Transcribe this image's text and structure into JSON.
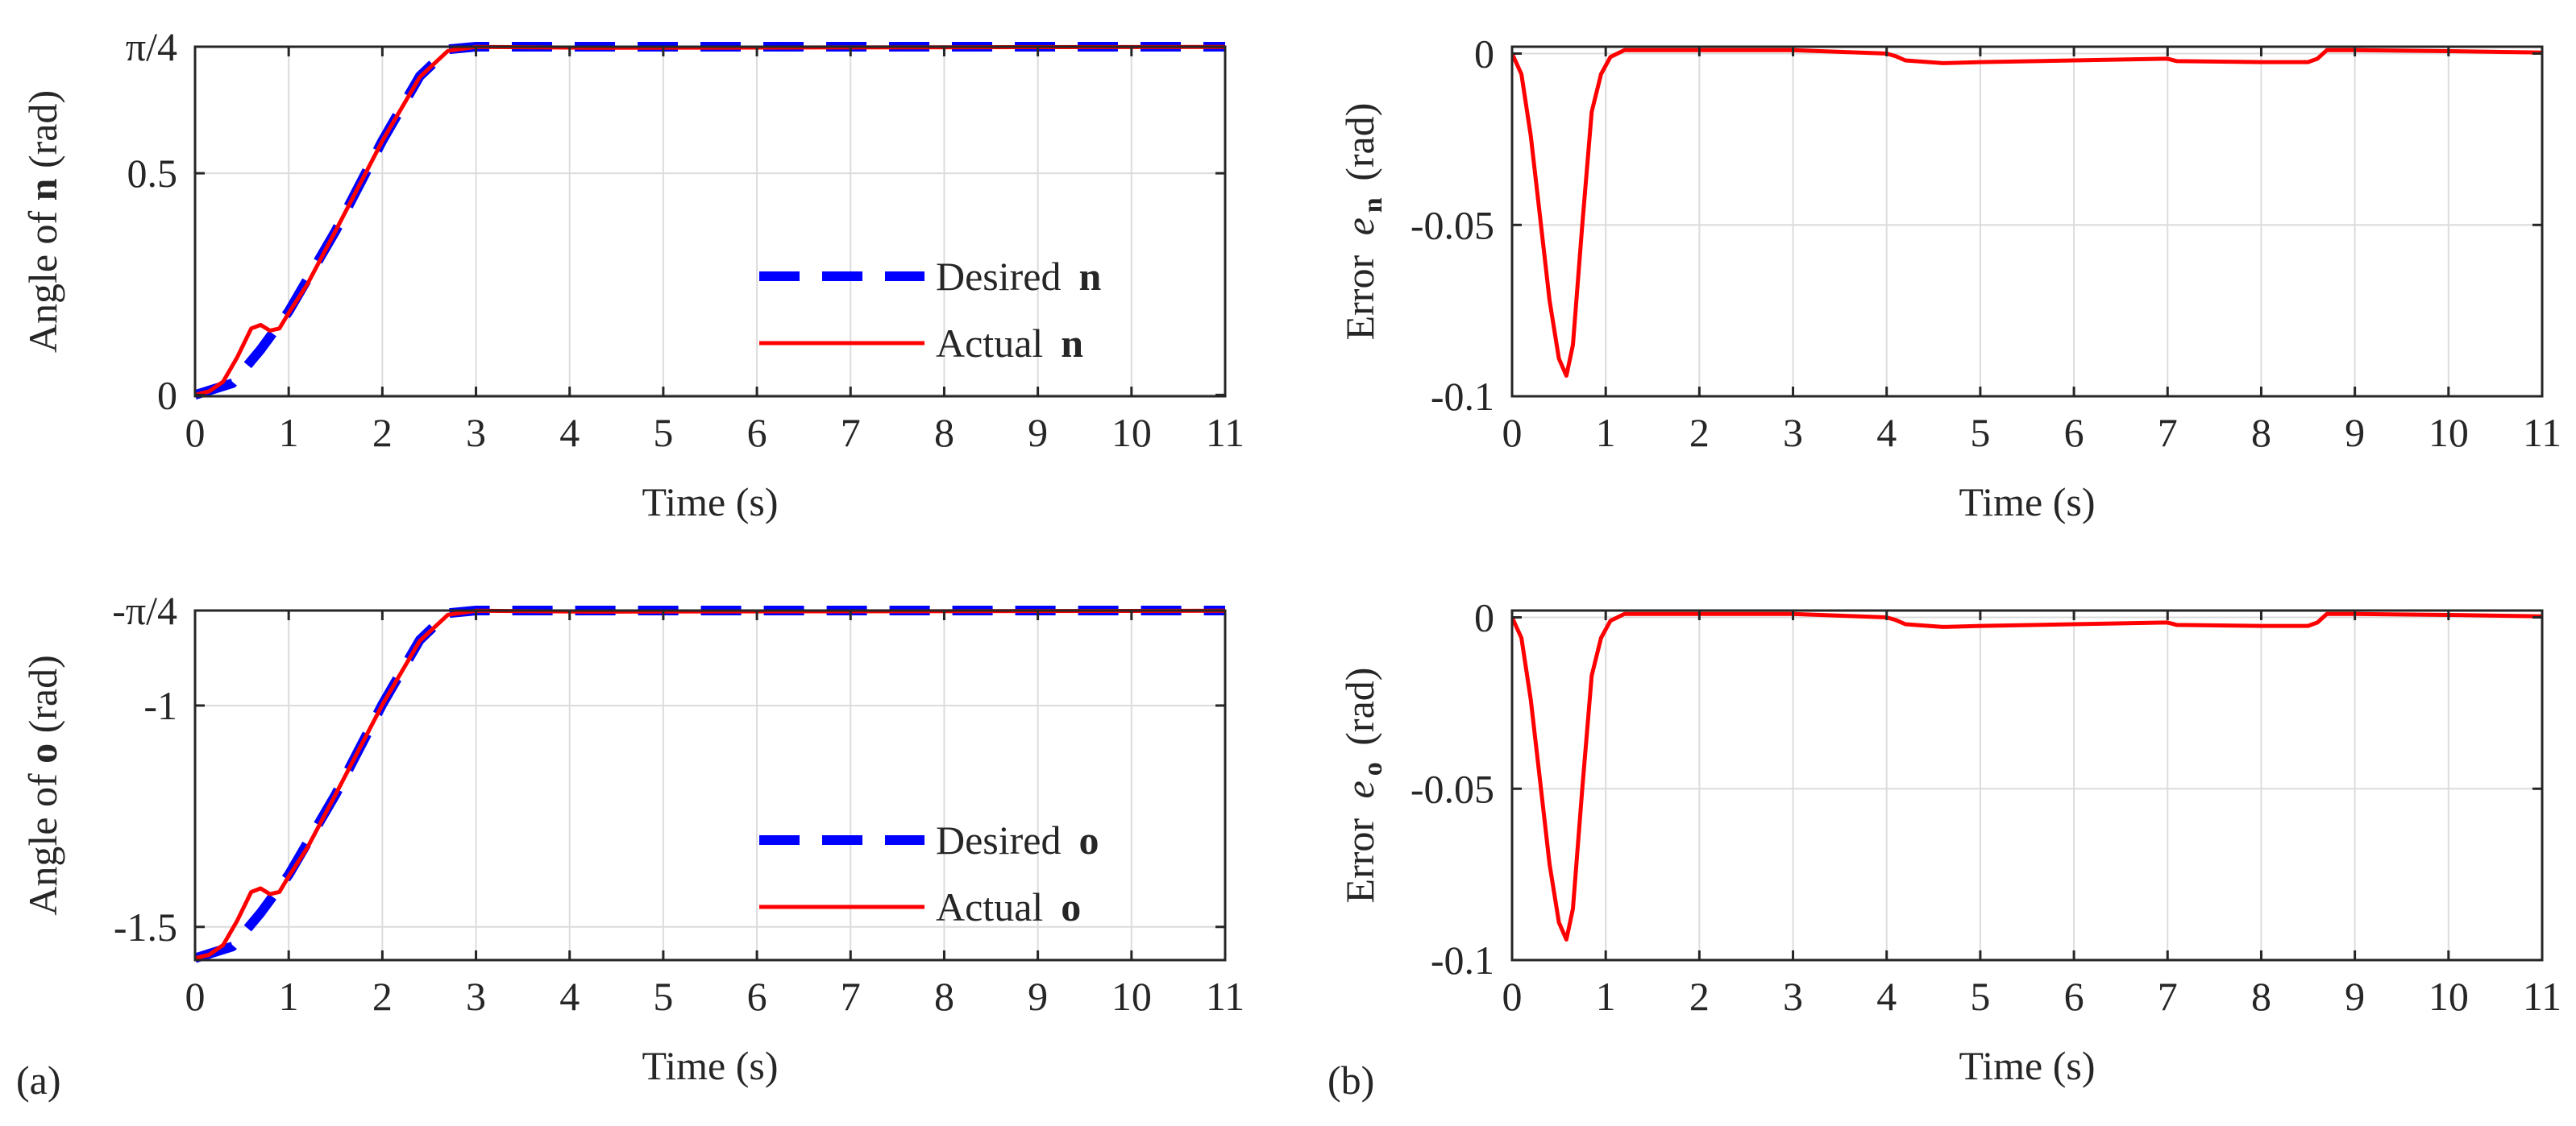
{
  "panel_labels": {
    "a": "(a)",
    "b": "(b)"
  },
  "chart_data": [
    {
      "id": "angle-n",
      "type": "line",
      "xlabel": "Time (s)",
      "ylabel": {
        "pre": "Angle of ",
        "bold": "n",
        "post": " (rad)"
      },
      "xlim": [
        0,
        11
      ],
      "ylim": [
        -0.003,
        0.7854
      ],
      "xticks": [
        0,
        1,
        2,
        3,
        4,
        5,
        6,
        7,
        8,
        9,
        10,
        11
      ],
      "yticks": [
        {
          "value": 0,
          "label": "0"
        },
        {
          "value": 0.5,
          "label": "0.5"
        },
        {
          "value": 0.7854,
          "label": "π/4"
        }
      ],
      "grid": true,
      "legend_position": "bottom-right",
      "series": [
        {
          "name": "Desired",
          "legend_symbol": "n",
          "color": "#0000ff",
          "style": "dashed",
          "x": [
            0,
            0.4,
            0.7,
            1,
            1.5,
            2,
            2.4,
            2.7,
            3,
            11
          ],
          "y": [
            0,
            0.0265,
            0.1022,
            0.1885,
            0.3695,
            0.5734,
            0.7189,
            0.7794,
            0.7854,
            0.7854
          ]
        },
        {
          "name": "Actual",
          "legend_symbol": "n",
          "color": "#ff0000",
          "style": "solid",
          "x": [
            0,
            0.15,
            0.3,
            0.45,
            0.6,
            0.7,
            0.8,
            0.9,
            1,
            1.2,
            1.5,
            2,
            2.4,
            2.7,
            3,
            4.2,
            11
          ],
          "y": [
            0,
            0.008,
            0.03,
            0.085,
            0.15,
            0.158,
            0.145,
            0.15,
            0.185,
            0.25,
            0.37,
            0.573,
            0.717,
            0.776,
            0.785,
            0.783,
            0.785
          ]
        }
      ]
    },
    {
      "id": "error-n",
      "type": "line",
      "xlabel": "Time (s)",
      "ylabel": {
        "pre": "Error ",
        "italic": "e",
        "sub": "n",
        "post": " (rad)"
      },
      "xlim": [
        0,
        11
      ],
      "ylim": [
        -0.1,
        0.002
      ],
      "xticks": [
        0,
        1,
        2,
        3,
        4,
        5,
        6,
        7,
        8,
        9,
        10,
        11
      ],
      "yticks": [
        {
          "value": 0,
          "label": "0"
        },
        {
          "value": -0.05,
          "label": "-0.05"
        },
        {
          "value": -0.1,
          "label": "-0.1"
        }
      ],
      "grid": true,
      "series": [
        {
          "name": "Error",
          "color": "#ff0000",
          "style": "solid",
          "x": [
            0,
            0.1,
            0.2,
            0.3,
            0.4,
            0.5,
            0.58,
            0.65,
            0.75,
            0.85,
            0.95,
            1.05,
            1.2,
            3,
            3.5,
            4,
            4.1,
            4.2,
            4.6,
            5,
            6,
            7,
            7.1,
            8,
            8.5,
            8.6,
            8.7,
            9,
            10,
            11
          ],
          "y": [
            0,
            -0.006,
            -0.024,
            -0.048,
            -0.072,
            -0.089,
            -0.094,
            -0.085,
            -0.05,
            -0.017,
            -0.006,
            -0.001,
            0.001,
            0.001,
            0.0005,
            0,
            -0.0008,
            -0.002,
            -0.0028,
            -0.0025,
            -0.002,
            -0.0015,
            -0.0022,
            -0.0025,
            -0.0025,
            -0.0015,
            0.001,
            0.001,
            0.0007,
            0.0003
          ]
        }
      ]
    },
    {
      "id": "angle-o",
      "type": "line",
      "xlabel": "Time (s)",
      "ylabel": {
        "pre": "Angle of ",
        "bold": "o",
        "post": " (rad)"
      },
      "xlim": [
        0,
        11
      ],
      "ylim": [
        -1.575,
        -0.7854
      ],
      "xticks": [
        0,
        1,
        2,
        3,
        4,
        5,
        6,
        7,
        8,
        9,
        10,
        11
      ],
      "yticks": [
        {
          "value": -0.7854,
          "label": "-π/4"
        },
        {
          "value": -1,
          "label": "-1"
        },
        {
          "value": -1.5,
          "label": "-1.5"
        }
      ],
      "grid": true,
      "legend_position": "bottom-right",
      "series": [
        {
          "name": "Desired",
          "legend_symbol": "o",
          "color": "#0000ff",
          "style": "dashed",
          "x": [
            0,
            0.4,
            0.7,
            1,
            1.5,
            2,
            2.4,
            2.7,
            3,
            11
          ],
          "y": [
            -1.5708,
            -1.5443,
            -1.4686,
            -1.3823,
            -1.2013,
            -0.9974,
            -0.8519,
            -0.7914,
            -0.7854,
            -0.7854
          ]
        },
        {
          "name": "Actual",
          "legend_symbol": "o",
          "color": "#ff0000",
          "style": "solid",
          "x": [
            0,
            0.15,
            0.3,
            0.45,
            0.6,
            0.7,
            0.8,
            0.9,
            1,
            1.2,
            1.5,
            2,
            2.4,
            2.7,
            3,
            4.2,
            11
          ],
          "y": [
            -1.5708,
            -1.563,
            -1.541,
            -1.486,
            -1.421,
            -1.413,
            -1.426,
            -1.421,
            -1.386,
            -1.321,
            -1.201,
            -0.998,
            -0.854,
            -0.795,
            -0.786,
            -0.788,
            -0.786
          ]
        }
      ]
    },
    {
      "id": "error-o",
      "type": "line",
      "xlabel": "Time (s)",
      "ylabel": {
        "pre": "Error ",
        "italic": "e",
        "sub": "o",
        "post": " (rad)"
      },
      "xlim": [
        0,
        11
      ],
      "ylim": [
        -0.1,
        0.002
      ],
      "xticks": [
        0,
        1,
        2,
        3,
        4,
        5,
        6,
        7,
        8,
        9,
        10,
        11
      ],
      "yticks": [
        {
          "value": 0,
          "label": "0"
        },
        {
          "value": -0.05,
          "label": "-0.05"
        },
        {
          "value": -0.1,
          "label": "-0.1"
        }
      ],
      "grid": true,
      "series": [
        {
          "name": "Error",
          "color": "#ff0000",
          "style": "solid",
          "x": [
            0,
            0.1,
            0.2,
            0.3,
            0.4,
            0.5,
            0.58,
            0.65,
            0.75,
            0.85,
            0.95,
            1.05,
            1.2,
            3,
            3.5,
            4,
            4.1,
            4.2,
            4.6,
            5,
            6,
            7,
            7.1,
            8,
            8.5,
            8.6,
            8.7,
            9,
            10,
            11
          ],
          "y": [
            0,
            -0.006,
            -0.024,
            -0.048,
            -0.072,
            -0.089,
            -0.094,
            -0.085,
            -0.05,
            -0.017,
            -0.006,
            -0.001,
            0.001,
            0.001,
            0.0005,
            0,
            -0.0008,
            -0.002,
            -0.0028,
            -0.0025,
            -0.002,
            -0.0015,
            -0.0022,
            -0.0025,
            -0.0025,
            -0.0015,
            0.001,
            0.001,
            0.0007,
            0.0003
          ]
        }
      ]
    }
  ]
}
